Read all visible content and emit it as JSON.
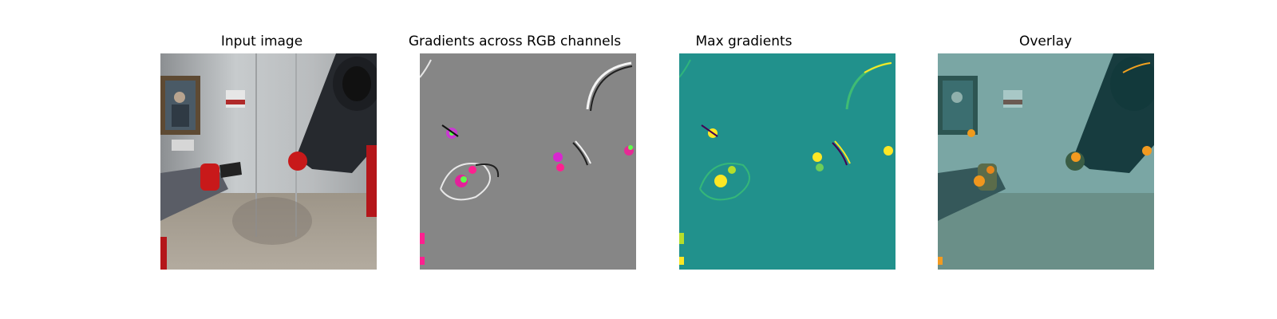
{
  "panels": [
    {
      "title": "Input image",
      "icon": "photo-input-image"
    },
    {
      "title": "Gradients across RGB channels",
      "icon": "gradient-rgb-map"
    },
    {
      "title": "Max gradients",
      "icon": "max-gradient-heatmap"
    },
    {
      "title": "Overlay",
      "icon": "overlay-heatmap"
    }
  ],
  "colors": {
    "gray_bg": "#868686",
    "teal_bg": "#21918c",
    "overlay_tint": "#1f8a86",
    "yellow": "#fde725",
    "robot_red": "#c8191a"
  }
}
